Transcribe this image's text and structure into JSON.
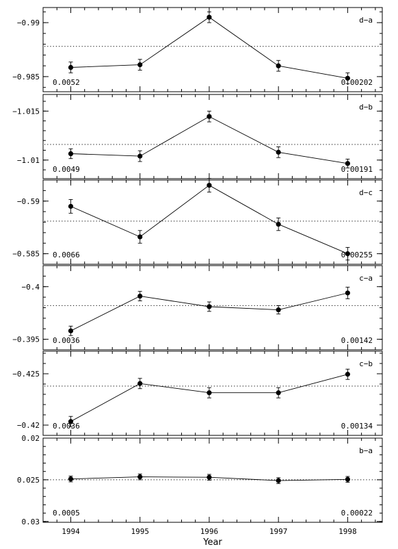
{
  "chart_data": {
    "type": "line",
    "xlabel": "Year",
    "x_ticks": [
      "1994",
      "1995",
      "1996",
      "1997",
      "1998"
    ],
    "x": [
      1994,
      1995,
      1996,
      1997,
      1998
    ],
    "xlim": [
      1993.6,
      1998.5
    ],
    "panels": [
      {
        "label": "d−a",
        "ylim": [
          -0.9914,
          -0.9836
        ],
        "y_ticks": [
          -0.99,
          -0.985
        ],
        "y_tick_labels": [
          "−0.99",
          "−0.985"
        ],
        "reference": -0.9878,
        "values": [
          -0.98585,
          -0.9861,
          -0.9905,
          -0.986,
          -0.98485
        ],
        "errors": [
          0.0005,
          0.0005,
          0.0005,
          0.0005,
          0.0005
        ],
        "left_note": "0.0052",
        "right_note": "0.00202"
      },
      {
        "label": "d−b",
        "ylim": [
          -1.0167,
          -1.0081
        ],
        "y_ticks": [
          -1.015,
          -1.01
        ],
        "y_tick_labels": [
          "−1.015",
          "−1.01"
        ],
        "reference": -1.0116,
        "values": [
          -1.01065,
          -1.0104,
          -1.01445,
          -1.0108,
          -1.00965
        ],
        "errors": [
          0.0005,
          0.00055,
          0.00055,
          0.00055,
          0.00045
        ],
        "left_note": "0.0049",
        "right_note": "0.00191"
      },
      {
        "label": "d−c",
        "ylim": [
          -0.592,
          -0.584
        ],
        "y_ticks": [
          -0.59,
          -0.585
        ],
        "y_tick_labels": [
          "−0.59",
          "−0.585"
        ],
        "reference": -0.5881,
        "values": [
          -0.5895,
          -0.5866,
          -0.5915,
          -0.5878,
          -0.585
        ],
        "errors": [
          0.00065,
          0.0006,
          0.00065,
          0.0006,
          0.0006
        ],
        "left_note": "0.0066",
        "right_note": "0.00255"
      },
      {
        "label": "c−a",
        "ylim": [
          -0.402,
          -0.394
        ],
        "y_ticks": [
          -0.4,
          -0.395
        ],
        "y_tick_labels": [
          "−0.4",
          "−0.395"
        ],
        "reference": -0.3982,
        "values": [
          -0.3958,
          -0.3991,
          -0.3981,
          -0.3978,
          -0.3994
        ],
        "errors": [
          0.00045,
          0.00045,
          0.00045,
          0.0004,
          0.00055
        ],
        "left_note": "0.0036",
        "right_note": "0.00142"
      },
      {
        "label": "c−b",
        "ylim": [
          -0.4272,
          -0.419
        ],
        "y_ticks": [
          -0.425,
          -0.42
        ],
        "y_tick_labels": [
          "−0.425",
          "−0.42"
        ],
        "reference": -0.4238,
        "values": [
          -0.42035,
          -0.42405,
          -0.42315,
          -0.42315,
          -0.42495
        ],
        "errors": [
          0.0005,
          0.0005,
          0.0005,
          0.0005,
          0.0005
        ],
        "left_note": "0.0036",
        "right_note": "0.00134"
      },
      {
        "label": "b−a",
        "ylim": [
          0.02,
          0.0301
        ],
        "y_ticks": [
          0.02,
          0.025,
          0.03
        ],
        "y_tick_labels": [
          "0.02",
          "0.025",
          "0.03"
        ],
        "reference": 0.025,
        "values": [
          0.0249,
          0.02465,
          0.0247,
          0.0251,
          0.02495
        ],
        "errors": [
          0.00035,
          0.00035,
          0.00035,
          0.00035,
          0.00035
        ],
        "left_note": "0.0005",
        "right_note": "0.00022"
      }
    ]
  }
}
